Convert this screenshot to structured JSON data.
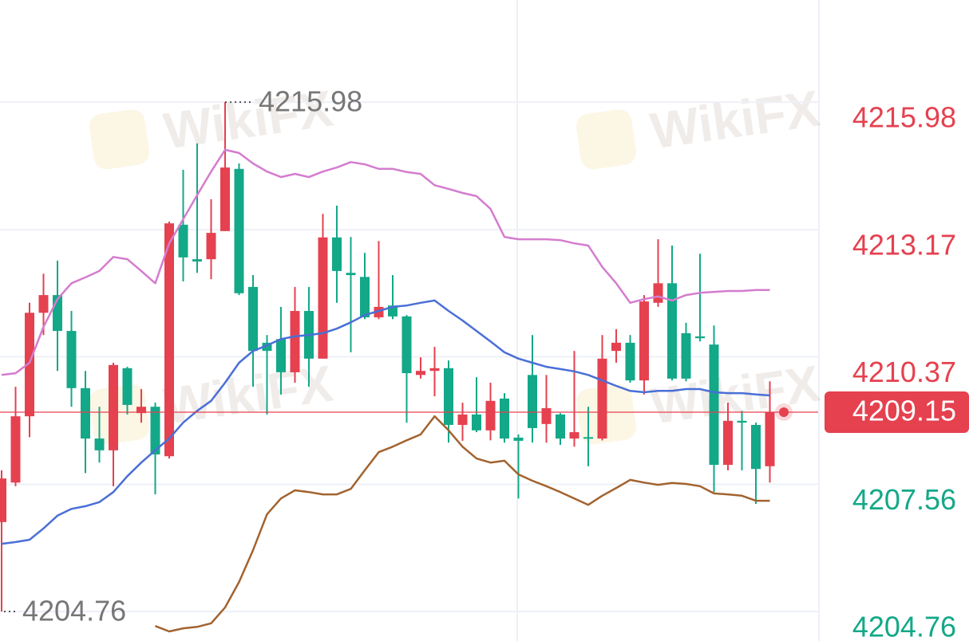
{
  "chart_data": {
    "type": "candlestick",
    "up_color": "#e5414f",
    "down_color": "#13a888",
    "open": [
      4206.73,
      4207.6,
      4209.06,
      4211.34,
      4211.73,
      4210.94,
      4209.68,
      4208.57,
      4208.31,
      4210.12,
      4209.13,
      4209.27,
      4208.18,
      4213.28,
      4212.52,
      4212.52,
      4213.14,
      4214.51,
      4211.91,
      4210.68,
      4210.76,
      4210.03,
      4211.38,
      4210.33,
      4213.0,
      4212.22,
      4212.13,
      4211.24,
      4211.5,
      4211.26,
      4209.97,
      4210.06,
      4210.12,
      4208.87,
      4209.1,
      4208.75,
      4209.45,
      4208.59,
      4209.97,
      4208.89,
      4209.1,
      4208.57,
      4208.6,
      4208.57,
      4210.5,
      4210.68,
      4209.85,
      4211.56,
      4211.99,
      4210.89,
      4210.82,
      4210.64,
      4207.99,
      4208.96,
      4208.87,
      4207.96
    ],
    "high": [
      4207.87,
      4209.71,
      4211.56,
      4212.2,
      4212.49,
      4211.38,
      4210.06,
      4209.27,
      4210.24,
      4210.15,
      4209.66,
      4209.36,
      4213.35,
      4214.49,
      4215.07,
      4213.84,
      4215.98,
      4214.63,
      4212.17,
      4210.85,
      4211.47,
      4211.91,
      4211.91,
      4213.52,
      4213.7,
      4213.01,
      4212.66,
      4212.92,
      4212.17,
      4211.29,
      4210.36,
      4210.59,
      4210.29,
      4209.36,
      4209.92,
      4209.8,
      4209.57,
      4208.66,
      4210.85,
      4209.97,
      4209.13,
      4210.5,
      4209.27,
      4210.85,
      4210.98,
      4210.85,
      4211.73,
      4212.96,
      4212.82,
      4211.12,
      4212.64,
      4211.06,
      4209.36,
      4209.18,
      4208.92,
      4209.83
    ],
    "low": [
      4204.76,
      4207.52,
      4208.6,
      4210.85,
      4210.06,
      4209.27,
      4207.81,
      4208.04,
      4207.52,
      4209.1,
      4208.92,
      4207.34,
      4208.13,
      4212.03,
      4212.22,
      4212.08,
      4213.14,
      4211.73,
      4209.71,
      4209.1,
      4209.54,
      4209.8,
      4209.71,
      4210.33,
      4211.56,
      4210.47,
      4211.2,
      4211.2,
      4211.2,
      4208.92,
      4209.89,
      4209.5,
      4208.48,
      4208.52,
      4208.71,
      4208.53,
      4208.48,
      4207.25,
      4208.48,
      4208.48,
      4208.43,
      4208.39,
      4207.96,
      4208.53,
      4210.24,
      4209.8,
      4209.54,
      4211.47,
      4209.85,
      4209.83,
      4210.71,
      4207.39,
      4207.87,
      4207.87,
      4207.13,
      4207.6
    ],
    "close": [
      4207.69,
      4209.06,
      4211.34,
      4211.73,
      4210.94,
      4209.68,
      4208.57,
      4208.31,
      4210.19,
      4209.31,
      4209.27,
      4208.22,
      4213.31,
      4212.56,
      4212.47,
      4213.1,
      4214.54,
      4211.77,
      4210.5,
      4210.5,
      4210.03,
      4211.38,
      4210.33,
      4213.0,
      4212.26,
      4212.17,
      4211.24,
      4211.47,
      4211.26,
      4210.01,
      4210.06,
      4210.12,
      4208.87,
      4209.1,
      4208.75,
      4209.4,
      4208.57,
      4208.52,
      4208.8,
      4209.24,
      4208.57,
      4208.71,
      4208.57,
      4210.33,
      4210.68,
      4209.85,
      4211.59,
      4211.99,
      4209.89,
      4209.89,
      4210.78,
      4207.99,
      4208.96,
      4208.92,
      4207.9,
      4209.15
    ],
    "lines": [
      {
        "color": "#d47ccf",
        "values": [
          4209.97,
          4210.01,
          4210.24,
          4211.03,
          4211.64,
          4211.99,
          4212.12,
          4212.26,
          4212.57,
          4212.52,
          4212.26,
          4211.99,
          4212.87,
          4213.4,
          4213.93,
          4214.45,
          4214.93,
          4214.86,
          4214.63,
          4214.45,
          4214.33,
          4214.4,
          4214.33,
          4214.45,
          4214.54,
          4214.66,
          4214.61,
          4214.51,
          4214.51,
          4214.44,
          4214.4,
          4214.15,
          4214.07,
          4213.98,
          4213.91,
          4213.63,
          4213.01,
          4212.96,
          4212.96,
          4212.96,
          4212.94,
          4212.87,
          4212.82,
          4212.35,
          4211.99,
          4211.56,
          4211.64,
          4211.7,
          4211.61,
          4211.73,
          4211.78,
          4211.8,
          4211.82,
          4211.82,
          4211.84,
          4211.84
        ]
      },
      {
        "color": "#4a6fd6",
        "values": [
          4206.25,
          4206.29,
          4206.34,
          4206.59,
          4206.87,
          4207.02,
          4207.08,
          4207.17,
          4207.39,
          4207.74,
          4208.04,
          4208.31,
          4208.57,
          4208.92,
          4209.18,
          4209.4,
          4209.8,
          4210.24,
          4210.5,
          4210.62,
          4210.76,
          4210.82,
          4210.85,
          4210.89,
          4210.99,
          4211.13,
          4211.29,
          4211.38,
          4211.47,
          4211.5,
          4211.56,
          4211.61,
          4211.38,
          4211.17,
          4210.94,
          4210.71,
          4210.47,
          4210.33,
          4210.24,
          4210.15,
          4210.1,
          4210.05,
          4209.97,
          4209.85,
          4209.73,
          4209.62,
          4209.59,
          4209.62,
          4209.62,
          4209.66,
          4209.66,
          4209.59,
          4209.57,
          4209.57,
          4209.54,
          4209.52
        ]
      },
      {
        "color": "#a2632f",
        "values": [
          null,
          null,
          null,
          null,
          null,
          null,
          null,
          null,
          null,
          null,
          null,
          4204.44,
          4204.32,
          4204.39,
          4204.42,
          4204.5,
          4204.85,
          4205.41,
          4206.11,
          4206.9,
          4207.25,
          4207.43,
          4207.39,
          4207.34,
          4207.34,
          4207.46,
          4207.87,
          4208.27,
          4208.39,
          4208.53,
          4208.66,
          4209.06,
          4208.75,
          4208.39,
          4208.13,
          4208.04,
          4208.08,
          4207.78,
          4207.64,
          4207.52,
          4207.39,
          4207.25,
          4207.11,
          4207.31,
          4207.48,
          4207.66,
          4207.6,
          4207.55,
          4207.59,
          4207.57,
          4207.52,
          4207.36,
          4207.34,
          4207.31,
          4207.2,
          4207.2
        ]
      }
    ],
    "ylim": [
      4204.11,
      4218.23
    ],
    "yticks": [
      4204.76,
      4207.56,
      4210.37,
      4213.17,
      4215.98
    ],
    "grid": true,
    "high_marker": 4215.98,
    "low_marker": 4204.76,
    "last_price": 4209.15,
    "watermark": "WikiFX"
  }
}
